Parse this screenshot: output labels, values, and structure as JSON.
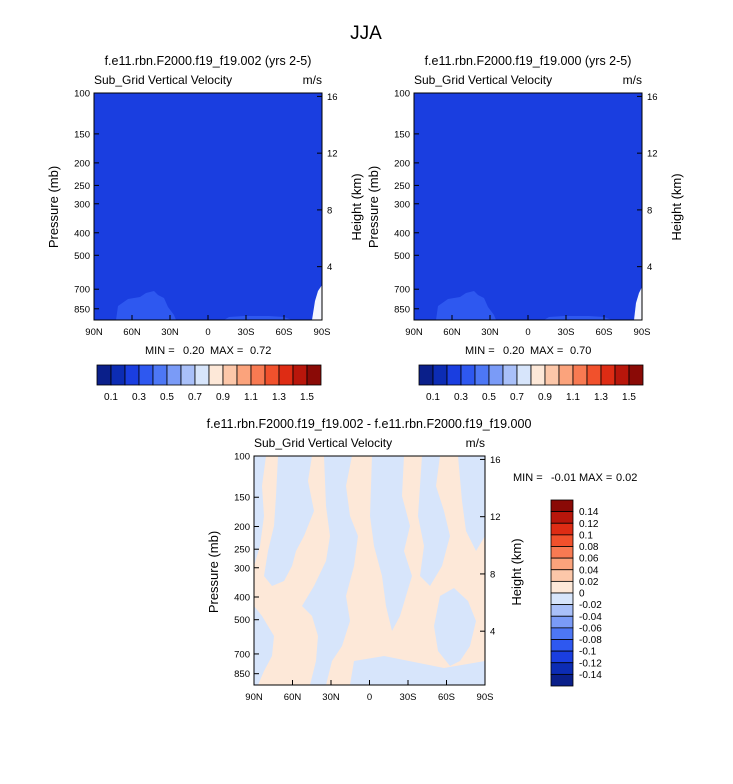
{
  "figure": {
    "title": "JJA"
  },
  "colors": {
    "abs_palette": [
      "#0a1f8a",
      "#0c2cb4",
      "#1a3ee0",
      "#2e58f0",
      "#4d77f5",
      "#7a9bf7",
      "#a9c0f9",
      "#d7e5fb",
      "#fde8d8",
      "#fcc7a9",
      "#fba37c",
      "#f87a52",
      "#f1512c",
      "#de2c14",
      "#b8160b",
      "#8a0a06"
    ],
    "diff_palette": [
      "#0a1f8a",
      "#0c2cb4",
      "#1a3ee0",
      "#2e58f0",
      "#4d77f5",
      "#7a9bf7",
      "#a9c0f9",
      "#d7e5fb",
      "#fde8d8",
      "#fcc7a9",
      "#fba37c",
      "#f87a52",
      "#f1512c",
      "#de2c14",
      "#b8160b",
      "#8a0a06"
    ]
  },
  "chart_data": [
    {
      "type": "heatmap",
      "title": "f.e11.rbn.F2000.f19_f19.002 (yrs 2-5)",
      "left_label": "Sub_Grid Vertical Velocity",
      "units": "m/s",
      "ylabel": "Pressure (mb)",
      "ylabel_right": "Height (km)",
      "x_ticks": [
        "90N",
        "60N",
        "30N",
        "0",
        "30S",
        "60S",
        "90S"
      ],
      "y_ticks": [
        "100",
        "150",
        "200",
        "250",
        "300",
        "400",
        "500",
        "700",
        "850"
      ],
      "y_right_ticks": [
        "16",
        "12",
        "8",
        "4"
      ],
      "min_label": "MIN =",
      "min_value": "0.20",
      "max_label": "MAX =",
      "max_value": "0.72",
      "dominant_level": 0.2
    },
    {
      "type": "heatmap",
      "title": "f.e11.rbn.F2000.f19_f19.000 (yrs 2-5)",
      "left_label": "Sub_Grid Vertical Velocity",
      "units": "m/s",
      "ylabel": "Pressure (mb)",
      "ylabel_right": "Height (km)",
      "x_ticks": [
        "90N",
        "60N",
        "30N",
        "0",
        "30S",
        "60S",
        "90S"
      ],
      "y_ticks": [
        "100",
        "150",
        "200",
        "250",
        "300",
        "400",
        "500",
        "700",
        "850"
      ],
      "y_right_ticks": [
        "16",
        "12",
        "8",
        "4"
      ],
      "min_label": "MIN =",
      "min_value": "0.20",
      "max_label": "MAX =",
      "max_value": "0.70",
      "dominant_level": 0.2
    },
    {
      "type": "heatmap",
      "title": "f.e11.rbn.F2000.f19_f19.002 - f.e11.rbn.F2000.f19_f19.000",
      "left_label": "Sub_Grid Vertical Velocity",
      "units": "m/s",
      "ylabel": "Pressure (mb)",
      "ylabel_right": "Height (km)",
      "x_ticks": [
        "90N",
        "60N",
        "30N",
        "0",
        "30S",
        "60S",
        "90S"
      ],
      "y_ticks": [
        "100",
        "150",
        "200",
        "250",
        "300",
        "400",
        "500",
        "700",
        "850"
      ],
      "y_right_ticks": [
        "16",
        "12",
        "8",
        "4"
      ],
      "min_label": "MIN =",
      "min_value": "-0.01",
      "max_label": "MAX =",
      "max_value": "0.02",
      "dominant_levels": [
        -0.02,
        0.02
      ]
    }
  ],
  "abs_colorbar": {
    "labels": [
      "0.1",
      "0.3",
      "0.5",
      "0.7",
      "0.9",
      "1.1",
      "1.3",
      "1.5"
    ]
  },
  "diff_colorbar": {
    "labels": [
      "0.14",
      "0.12",
      "0.1",
      "0.08",
      "0.06",
      "0.04",
      "0.02",
      "0",
      "-0.02",
      "-0.04",
      "-0.06",
      "-0.08",
      "-0.1",
      "-0.12",
      "-0.14"
    ]
  }
}
